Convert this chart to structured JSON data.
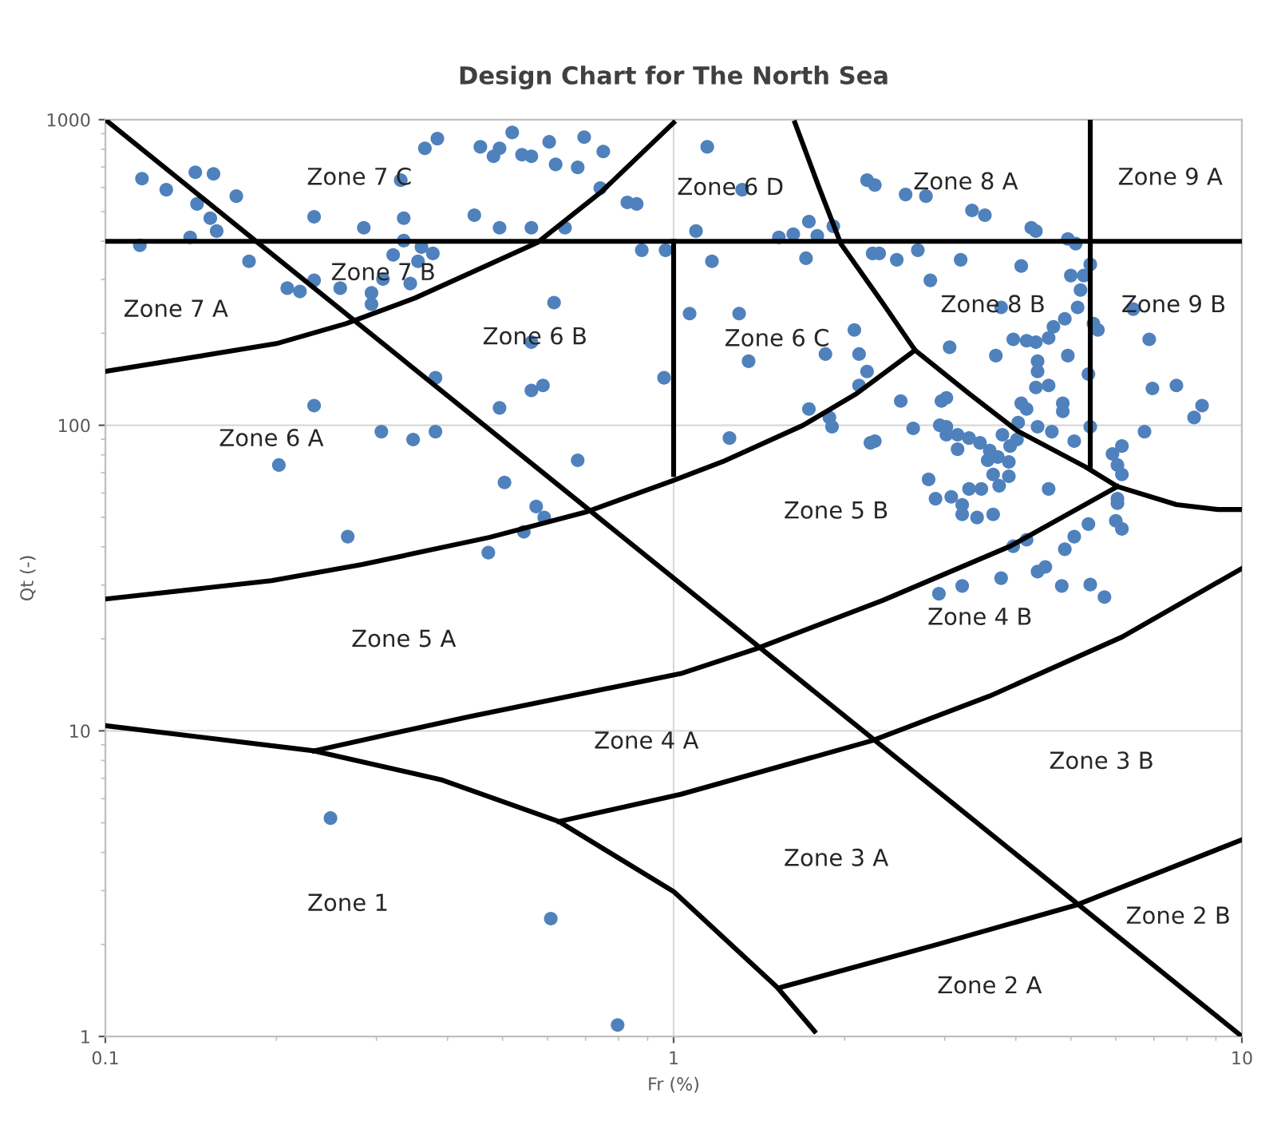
{
  "chart_data": {
    "type": "scatter",
    "title": "Design Chart for The North Sea",
    "xlabel": "Fr (%)",
    "ylabel": "Qt (-)",
    "log": "xy",
    "xlim": [
      0.1,
      10
    ],
    "ylim": [
      1,
      1000
    ],
    "xticks": [
      0.1,
      1,
      10
    ],
    "yticks": [
      1,
      10,
      100,
      1000
    ],
    "grid": true,
    "series": [
      {
        "type": "scatter",
        "marker": "circle",
        "color": "#4f81bd",
        "x": [
          0.116,
          0.128,
          0.144,
          0.155,
          0.17,
          0.145,
          0.153,
          0.157,
          0.141,
          0.115,
          0.179,
          0.209,
          0.22,
          0.233,
          0.259,
          0.233,
          0.285,
          0.335,
          0.335,
          0.321,
          0.36,
          0.377,
          0.355,
          0.344,
          0.308,
          0.294,
          0.294,
          0.331,
          0.365,
          0.384,
          0.457,
          0.482,
          0.494,
          0.52,
          0.541,
          0.562,
          0.604,
          0.62,
          0.678,
          0.696,
          0.752,
          0.743,
          0.829,
          0.861,
          0.446,
          0.494,
          0.562,
          0.644,
          0.879,
          0.968,
          0.616,
          0.562,
          0.962,
          0.381,
          0.494,
          0.562,
          0.589,
          0.233,
          0.306,
          0.348,
          0.381,
          0.202,
          0.678,
          0.504,
          0.573,
          0.592,
          0.545,
          0.267,
          0.472,
          0.249,
          0.608,
          0.797,
          1.146,
          1.32,
          1.095,
          1.168,
          1.067,
          1.304,
          1.355,
          1.532,
          1.624,
          1.73,
          1.79,
          1.91,
          1.71,
          2.19,
          2.26,
          2.56,
          2.78,
          3.35,
          3.53,
          4.26,
          4.34,
          4.94,
          5.1,
          2.24,
          2.3,
          2.47,
          2.69,
          3.2,
          4.09,
          2.83,
          2.08,
          1.85,
          2.12,
          2.19,
          2.12,
          1.73,
          1.88,
          1.9,
          1.254,
          2.22,
          2.26,
          2.51,
          2.64,
          2.96,
          3.02,
          2.94,
          3.02,
          3.06,
          3.69,
          3.77,
          3.96,
          4.18,
          4.34,
          4.94,
          4.57,
          4.66,
          4.88,
          5.14,
          5.2,
          5.27,
          5.0,
          5.41,
          5.48,
          5.58,
          5.37,
          4.37,
          4.37,
          4.34,
          4.57,
          4.09,
          4.18,
          4.84,
          4.84,
          4.04,
          4.37,
          4.63,
          5.07,
          5.41,
          6.44,
          6.87,
          6.96,
          7.67,
          8.51,
          8.24,
          6.74,
          3.16,
          3.31,
          3.46,
          3.6,
          3.79,
          3.91,
          4.02,
          3.16,
          3.57,
          3.72,
          3.89,
          3.65,
          3.89,
          3.74,
          3.31,
          3.48,
          2.81,
          2.89,
          3.08,
          3.22,
          3.22,
          3.42,
          3.65,
          4.57,
          3.02,
          5.92,
          6.15,
          6.04,
          6.15,
          6.04,
          6.04,
          6.0,
          6.15,
          3.96,
          4.18,
          4.88,
          5.07,
          5.37,
          3.77,
          4.37,
          4.51,
          4.82,
          5.41,
          5.73,
          2.93,
          3.22
        ],
        "values": [
          641,
          590,
          673,
          665,
          562,
          530,
          476,
          432,
          412,
          388,
          344,
          281,
          274,
          298,
          281,
          481,
          443,
          476,
          402,
          361,
          383,
          365,
          344,
          291,
          301,
          271,
          249,
          634,
          806,
          867,
          815,
          759,
          806,
          908,
          768,
          759,
          846,
          714,
          698,
          877,
          787,
          597,
          536,
          530,
          487,
          443,
          443,
          443,
          374,
          374,
          252,
          187,
          143,
          143,
          114,
          130,
          135,
          116,
          95.3,
          89.8,
          95.3,
          74.1,
          76.8,
          65.0,
          54.2,
          49.9,
          44.8,
          43.2,
          38.3,
          5.18,
          2.43,
          1.09,
          815,
          590,
          432,
          344,
          232,
          232,
          162,
          412,
          422,
          464,
          417,
          448,
          352,
          634,
          611,
          569,
          562,
          505,
          487,
          443,
          432,
          407,
          393,
          365,
          365,
          348,
          374,
          348,
          332,
          298,
          205,
          171,
          171,
          150,
          135,
          113,
          106,
          98.9,
          90.8,
          87.6,
          88.7,
          120,
          97.7,
          120,
          123,
          100,
          98.9,
          180,
          169,
          243,
          191,
          189,
          187,
          169,
          193,
          210,
          223,
          243,
          277,
          309,
          309,
          336,
          215,
          205,
          147,
          162,
          150,
          133,
          135,
          118,
          113,
          118,
          111,
          102,
          98.9,
          95.3,
          88.7,
          98.9,
          240,
          191,
          132,
          135,
          116,
          106,
          95.3,
          93.1,
          90.8,
          87.6,
          82.6,
          93.1,
          85.5,
          89.8,
          83.5,
          76.8,
          78.7,
          75.9,
          69.0,
          68.1,
          63.4,
          61.9,
          61.9,
          66.5,
          57.5,
          58.3,
          54.9,
          51.1,
          49.9,
          51.1,
          61.9,
          93.1,
          80.6,
          85.5,
          74.1,
          69.0,
          57.5,
          55.6,
          48.7,
          45.8,
          40.2,
          42.2,
          39.3,
          43.2,
          47.5,
          31.6,
          33.2,
          34.4,
          29.8,
          30.1,
          27.4,
          28.1,
          29.8
        ]
      },
      {
        "type": "line",
        "marker": "none",
        "line_style": "solid",
        "color": "#000000",
        "x": [
          0.1,
          10
        ],
        "values": [
          1000,
          1
        ]
      },
      {
        "type": "line",
        "marker": "none",
        "line_style": "solid",
        "color": "#000000",
        "x": [
          0.1,
          10
        ],
        "values": [
          400,
          400
        ]
      },
      {
        "type": "line",
        "marker": "none",
        "line_style": "solid",
        "color": "#000000",
        "x": [
          1,
          1
        ],
        "values": [
          69,
          400
        ]
      },
      {
        "type": "line",
        "marker": "none",
        "line_style": "solid",
        "color": "#000000",
        "x": [
          5.41,
          5.41
        ],
        "values": [
          73,
          1000
        ]
      },
      {
        "type": "line",
        "marker": "none",
        "line_style": "solid",
        "color": "#000000",
        "x": [
          0.1,
          0.2,
          0.265,
          0.351,
          0.577,
          0.748,
          1
        ],
        "values": [
          150,
          185,
          215,
          261,
          397,
          583,
          977
        ]
      },
      {
        "type": "line",
        "marker": "none",
        "line_style": "solid",
        "color": "#000000",
        "x": [
          1.635,
          1.8,
          1.97,
          2.33,
          2.66,
          3.31,
          4.02,
          5.31,
          6.04,
          7.67,
          9.08,
          10
        ],
        "values": [
          977,
          604,
          392,
          252,
          176,
          127,
          96,
          73,
          63,
          55,
          53,
          53
        ]
      },
      {
        "type": "line",
        "marker": "none",
        "line_style": "solid",
        "color": "#000000",
        "x": [
          0.1,
          0.196,
          0.283,
          0.475,
          0.701,
          1,
          1.22,
          1.69,
          2.1,
          2.66
        ],
        "values": [
          27,
          31,
          35,
          43,
          52,
          66,
          76,
          100,
          127,
          176
        ]
      },
      {
        "type": "line",
        "marker": "none",
        "line_style": "solid",
        "color": "#000000",
        "x": [
          0.233,
          0.434,
          1.03,
          1.39,
          2.33,
          3.91,
          6.04
        ],
        "values": [
          8.6,
          11.1,
          15.4,
          18.5,
          26.7,
          40.2,
          63
        ]
      },
      {
        "type": "line",
        "marker": "none",
        "line_style": "solid",
        "color": "#000000",
        "x": [
          0.1,
          0.233,
          0.392,
          0.628,
          1,
          1.52,
          1.77
        ],
        "values": [
          10.4,
          8.6,
          6.9,
          5.05,
          2.98,
          1.45,
          1.04
        ]
      },
      {
        "type": "line",
        "marker": "none",
        "line_style": "solid",
        "color": "#000000",
        "x": [
          0.628,
          1.03,
          2.24,
          3.6,
          6.16,
          10
        ],
        "values": [
          5.05,
          6.2,
          9.3,
          13.0,
          20.3,
          34
        ]
      },
      {
        "type": "line",
        "marker": "none",
        "line_style": "solid",
        "color": "#000000",
        "x": [
          1.55,
          2.91,
          5.14,
          10
        ],
        "values": [
          1.45,
          2.0,
          2.7,
          4.4
        ]
      }
    ],
    "annotations": [
      "Zone 7 C",
      "Zone 6 D",
      "Zone 8 A",
      "Zone 9 A",
      "Zone 7 B",
      "Zone 7 A",
      "Zone 6 B",
      "Zone 6 C",
      "Zone 8 B",
      "Zone 9 B",
      "Zone 6 A",
      "Zone 5 B",
      "Zone 5 A",
      "Zone 4 B",
      "Zone 4 A",
      "Zone 3 B",
      "Zone 3 A",
      "Zone 1",
      "Zone 2 B",
      "Zone 2 A"
    ]
  }
}
